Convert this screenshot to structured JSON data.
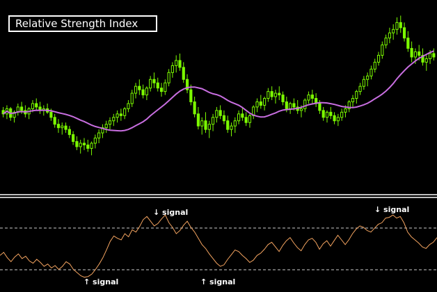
{
  "title": "Relative Strength Index",
  "colors": {
    "background": "#000000",
    "candle": "#7CFC00",
    "moving_average": "#C86EE0",
    "rsi_line": "#F4A460",
    "divider": "#FFFFFF",
    "guide": "#CCCCCC"
  },
  "annotations": [
    {
      "text": "↓ signal",
      "index": 70
    },
    {
      "text": "↓ signal",
      "index": 177
    },
    {
      "text": "↑ signal",
      "index": 40
    },
    {
      "text": "↑ signal",
      "index": 95
    }
  ],
  "chart_data": [
    {
      "type": "candlestick",
      "title": "",
      "ylim": [
        0,
        100
      ],
      "grid": false,
      "ohlc": [
        [
          44,
          46,
          40,
          42
        ],
        [
          42,
          47,
          39,
          45
        ],
        [
          45,
          46,
          38,
          40
        ],
        [
          40,
          44,
          37,
          43
        ],
        [
          43,
          48,
          41,
          46
        ],
        [
          46,
          49,
          42,
          44
        ],
        [
          44,
          47,
          40,
          42
        ],
        [
          42,
          46,
          39,
          45
        ],
        [
          45,
          50,
          43,
          48
        ],
        [
          48,
          51,
          44,
          46
        ],
        [
          46,
          49,
          42,
          44
        ],
        [
          44,
          47,
          41,
          45
        ],
        [
          45,
          48,
          42,
          43
        ],
        [
          43,
          45,
          38,
          40
        ],
        [
          40,
          42,
          34,
          36
        ],
        [
          36,
          39,
          31,
          34
        ],
        [
          34,
          37,
          30,
          35
        ],
        [
          35,
          37,
          31,
          33
        ],
        [
          33,
          35,
          28,
          30
        ],
        [
          30,
          32,
          24,
          26
        ],
        [
          26,
          29,
          21,
          23
        ],
        [
          23,
          27,
          19,
          25
        ],
        [
          25,
          28,
          21,
          24
        ],
        [
          24,
          27,
          20,
          22
        ],
        [
          22,
          26,
          18,
          25
        ],
        [
          25,
          30,
          22,
          28
        ],
        [
          28,
          33,
          25,
          31
        ],
        [
          31,
          36,
          28,
          34
        ],
        [
          34,
          38,
          31,
          36
        ],
        [
          36,
          40,
          33,
          38
        ],
        [
          38,
          42,
          35,
          40
        ],
        [
          40,
          44,
          37,
          42
        ],
        [
          42,
          45,
          38,
          41
        ],
        [
          41,
          46,
          39,
          45
        ],
        [
          45,
          50,
          43,
          48
        ],
        [
          48,
          56,
          46,
          54
        ],
        [
          54,
          60,
          51,
          58
        ],
        [
          58,
          62,
          53,
          56
        ],
        [
          56,
          59,
          51,
          53
        ],
        [
          53,
          58,
          50,
          57
        ],
        [
          57,
          64,
          55,
          62
        ],
        [
          62,
          66,
          57,
          60
        ],
        [
          60,
          63,
          55,
          57
        ],
        [
          57,
          60,
          52,
          55
        ],
        [
          55,
          62,
          53,
          60
        ],
        [
          60,
          68,
          58,
          66
        ],
        [
          66,
          72,
          63,
          70
        ],
        [
          70,
          76,
          66,
          73
        ],
        [
          73,
          77,
          67,
          69
        ],
        [
          69,
          72,
          60,
          62
        ],
        [
          62,
          65,
          54,
          56
        ],
        [
          56,
          59,
          47,
          49
        ],
        [
          49,
          52,
          40,
          42
        ],
        [
          42,
          46,
          33,
          35
        ],
        [
          35,
          40,
          30,
          38
        ],
        [
          38,
          43,
          31,
          33
        ],
        [
          33,
          38,
          28,
          36
        ],
        [
          36,
          42,
          32,
          40
        ],
        [
          40,
          46,
          37,
          44
        ],
        [
          44,
          47,
          39,
          41
        ],
        [
          41,
          44,
          36,
          38
        ],
        [
          38,
          41,
          31,
          33
        ],
        [
          33,
          37,
          29,
          35
        ],
        [
          35,
          40,
          31,
          38
        ],
        [
          38,
          44,
          36,
          42
        ],
        [
          42,
          46,
          38,
          40
        ],
        [
          40,
          43,
          35,
          37
        ],
        [
          37,
          42,
          34,
          41
        ],
        [
          41,
          47,
          39,
          46
        ],
        [
          46,
          51,
          43,
          49
        ],
        [
          49,
          53,
          45,
          47
        ],
        [
          47,
          52,
          44,
          51
        ],
        [
          51,
          57,
          49,
          55
        ],
        [
          55,
          58,
          50,
          52
        ],
        [
          52,
          56,
          48,
          54
        ],
        [
          54,
          58,
          50,
          53
        ],
        [
          53,
          55,
          47,
          49
        ],
        [
          49,
          52,
          43,
          45
        ],
        [
          45,
          49,
          42,
          48
        ],
        [
          48,
          51,
          44,
          46
        ],
        [
          46,
          50,
          42,
          44
        ],
        [
          44,
          47,
          40,
          45
        ],
        [
          45,
          51,
          43,
          50
        ],
        [
          50,
          55,
          48,
          53
        ],
        [
          53,
          56,
          48,
          51
        ],
        [
          51,
          54,
          46,
          48
        ],
        [
          48,
          50,
          42,
          44
        ],
        [
          44,
          46,
          38,
          40
        ],
        [
          40,
          44,
          37,
          43
        ],
        [
          43,
          46,
          39,
          41
        ],
        [
          41,
          43,
          36,
          38
        ],
        [
          38,
          42,
          35,
          40
        ],
        [
          40,
          45,
          38,
          43
        ],
        [
          43,
          47,
          40,
          45
        ],
        [
          45,
          50,
          43,
          49
        ],
        [
          49,
          53,
          46,
          51
        ],
        [
          51,
          56,
          48,
          55
        ],
        [
          55,
          60,
          53,
          58
        ],
        [
          58,
          64,
          56,
          62
        ],
        [
          62,
          66,
          58,
          64
        ],
        [
          64,
          70,
          62,
          68
        ],
        [
          68,
          74,
          66,
          72
        ],
        [
          72,
          78,
          70,
          76
        ],
        [
          76,
          84,
          74,
          82
        ],
        [
          82,
          88,
          80,
          86
        ],
        [
          86,
          92,
          83,
          89
        ],
        [
          89,
          94,
          85,
          91
        ],
        [
          91,
          98,
          88,
          95
        ],
        [
          95,
          99,
          89,
          92
        ],
        [
          92,
          95,
          84,
          86
        ],
        [
          86,
          90,
          78,
          80
        ],
        [
          80,
          84,
          72,
          75
        ],
        [
          75,
          80,
          71,
          78
        ],
        [
          78,
          82,
          73,
          76
        ],
        [
          76,
          80,
          70,
          72
        ],
        [
          72,
          76,
          67,
          74
        ],
        [
          74,
          79,
          71,
          77
        ],
        [
          77,
          80,
          73,
          75
        ]
      ]
    },
    {
      "type": "line",
      "title": "",
      "ylim": [
        0,
        100
      ],
      "grid": false,
      "values": [
        38,
        42,
        35,
        30,
        36,
        40,
        34,
        37,
        31,
        28,
        33,
        29,
        24,
        27,
        22,
        25,
        20,
        24,
        30,
        27,
        20,
        16,
        12,
        10,
        11,
        14,
        20,
        27,
        35,
        45,
        56,
        63,
        60,
        58,
        66,
        62,
        71,
        68,
        75,
        84,
        88,
        82,
        76,
        79,
        85,
        90,
        80,
        74,
        66,
        70,
        77,
        82,
        74,
        68,
        60,
        52,
        47,
        40,
        34,
        28,
        24,
        26,
        33,
        39,
        45,
        43,
        38,
        34,
        29,
        32,
        38,
        41,
        46,
        52,
        55,
        49,
        43,
        51,
        57,
        61,
        54,
        48,
        44,
        52,
        58,
        60,
        55,
        46,
        53,
        57,
        50,
        57,
        64,
        58,
        52,
        58,
        66,
        72,
        76,
        74,
        70,
        68,
        73,
        78,
        80,
        86,
        87,
        90,
        86,
        88,
        80,
        68,
        62,
        58,
        54,
        49,
        47,
        52,
        55,
        61
      ]
    }
  ]
}
